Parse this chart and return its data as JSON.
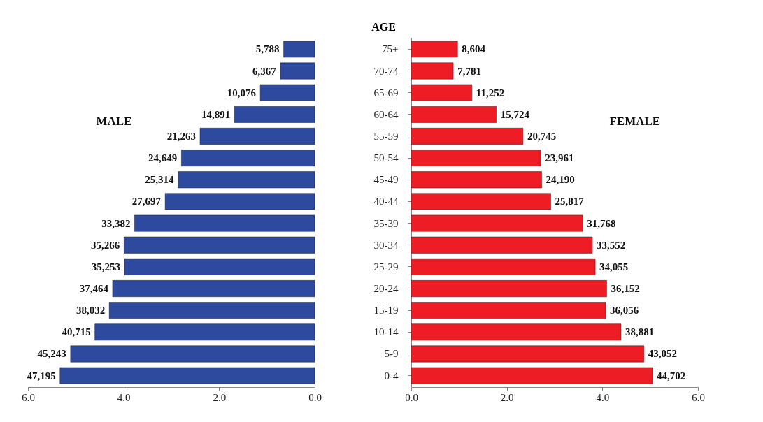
{
  "chart_data": [
    {
      "type": "bar",
      "orientation": "horizontal",
      "title": "MALE",
      "categories": [
        "75+",
        "70-74",
        "65-69",
        "60-64",
        "55-59",
        "50-54",
        "45-49",
        "40-44",
        "35-39",
        "30-34",
        "25-29",
        "20-24",
        "15-19",
        "10-14",
        "5-9",
        "0-4"
      ],
      "values": [
        0.65,
        0.72,
        1.14,
        1.68,
        2.4,
        2.79,
        2.86,
        3.13,
        3.77,
        3.99,
        3.98,
        4.23,
        4.3,
        4.6,
        5.11,
        5.33
      ],
      "annotations": [
        {
          "text": "5,788",
          "x": 0.65,
          "y": "75+"
        },
        {
          "text": "6,367",
          "x": 0.72,
          "y": "70-74"
        },
        {
          "text": "10,076",
          "x": 1.14,
          "y": "65-69"
        },
        {
          "text": "14,891",
          "x": 1.68,
          "y": "60-64"
        },
        {
          "text": "21,263",
          "x": 2.4,
          "y": "55-59"
        },
        {
          "text": "24,649",
          "x": 2.79,
          "y": "50-54"
        },
        {
          "text": "25,314",
          "x": 2.86,
          "y": "45-49"
        },
        {
          "text": "27,697",
          "x": 3.13,
          "y": "40-44"
        },
        {
          "text": "33,382",
          "x": 3.77,
          "y": "35-39"
        },
        {
          "text": "35,266",
          "x": 3.99,
          "y": "30-34"
        },
        {
          "text": "35,253",
          "x": 3.98,
          "y": "25-29"
        },
        {
          "text": "37,464",
          "x": 4.23,
          "y": "20-24"
        },
        {
          "text": "38,032",
          "x": 4.3,
          "y": "15-19"
        },
        {
          "text": "40,715",
          "x": 4.6,
          "y": "10-14"
        },
        {
          "text": "45,243",
          "x": 5.11,
          "y": "5-9"
        },
        {
          "text": "47,195",
          "x": 5.33,
          "y": "0-4"
        }
      ],
      "color": "#2e4a9e",
      "xlim": [
        6.0,
        0.0
      ],
      "xticks": [
        {
          "value": 6,
          "label": "6.0"
        },
        {
          "value": 4,
          "label": "4.0"
        },
        {
          "value": 2,
          "label": "2.0"
        },
        {
          "value": 0,
          "label": "0.0"
        }
      ],
      "tick_labels": "x"
    },
    {
      "type": "bar",
      "orientation": "horizontal",
      "title": "FEMALE",
      "ylabel": "AGE",
      "categories": [
        "75+",
        "70-74",
        "65-69",
        "60-64",
        "55-59",
        "50-54",
        "45-49",
        "40-44",
        "35-39",
        "30-34",
        "25-29",
        "20-24",
        "15-19",
        "10-14",
        "5-9",
        "0-4"
      ],
      "values": [
        0.97,
        0.88,
        1.27,
        1.78,
        2.34,
        2.71,
        2.73,
        2.92,
        3.59,
        3.79,
        3.85,
        4.09,
        4.07,
        4.39,
        4.87,
        5.05
      ],
      "annotations": [
        {
          "text": "8,604",
          "x": 0.97,
          "y": "75+"
        },
        {
          "text": "7,781",
          "x": 0.88,
          "y": "70-74"
        },
        {
          "text": "11,252",
          "x": 1.27,
          "y": "65-69"
        },
        {
          "text": "15,724",
          "x": 1.78,
          "y": "60-64"
        },
        {
          "text": "20,745",
          "x": 2.34,
          "y": "55-59"
        },
        {
          "text": "23,961",
          "x": 2.71,
          "y": "50-54"
        },
        {
          "text": "24,190",
          "x": 2.73,
          "y": "45-49"
        },
        {
          "text": "25,817",
          "x": 2.92,
          "y": "40-44"
        },
        {
          "text": "31,768",
          "x": 3.59,
          "y": "35-39"
        },
        {
          "text": "33,552",
          "x": 3.79,
          "y": "30-34"
        },
        {
          "text": "34,055",
          "x": 3.85,
          "y": "25-29"
        },
        {
          "text": "36,152",
          "x": 4.09,
          "y": "20-24"
        },
        {
          "text": "36,056",
          "x": 4.07,
          "y": "15-19"
        },
        {
          "text": "38,881",
          "x": 4.39,
          "y": "10-14"
        },
        {
          "text": "43,052",
          "x": 4.87,
          "y": "5-9"
        },
        {
          "text": "44,702",
          "x": 5.05,
          "y": "0-4"
        }
      ],
      "color": "#ee1c24",
      "xlim": [
        0.0,
        6.0
      ],
      "xticks": [
        {
          "value": 0,
          "label": "0.0"
        },
        {
          "value": 2,
          "label": "2.0"
        },
        {
          "value": 4,
          "label": "4.0"
        },
        {
          "value": 6,
          "label": "6.0"
        }
      ]
    }
  ]
}
